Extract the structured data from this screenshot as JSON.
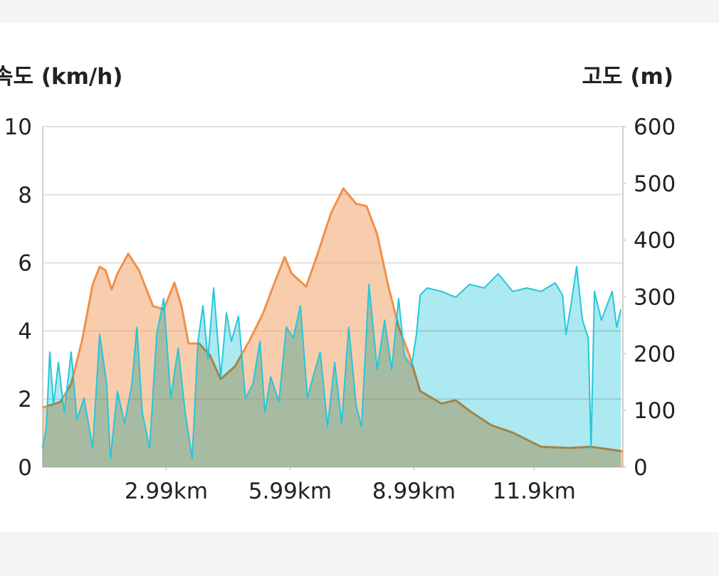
{
  "chart_data": {
    "type": "area",
    "y_label": "속도 (km/h)",
    "y2_label": "고도 (m)",
    "xlim": [
      0,
      14.05
    ],
    "xticks": [
      {
        "value": 2.99,
        "label": "2.99km"
      },
      {
        "value": 5.99,
        "label": "5.99km"
      },
      {
        "value": 8.99,
        "label": "8.99km"
      },
      {
        "value": 11.9,
        "label": "11.9km"
      }
    ],
    "ylim": [
      0,
      10
    ],
    "yticks": [
      0,
      2,
      4,
      6,
      8,
      10
    ],
    "y2lim": [
      0,
      600
    ],
    "y2ticks": [
      0,
      100,
      200,
      300,
      400,
      500,
      600
    ],
    "grid": true,
    "series": [
      {
        "name": "고도",
        "axis": "y2",
        "color": "#f0904a",
        "x": [
          0,
          0.43,
          0.69,
          0.95,
          1.21,
          1.38,
          1.52,
          1.67,
          1.81,
          2.07,
          2.33,
          2.67,
          2.93,
          3.19,
          3.36,
          3.53,
          3.79,
          4.05,
          4.31,
          4.66,
          5.0,
          5.34,
          5.6,
          5.86,
          6.03,
          6.38,
          6.64,
          6.98,
          7.28,
          7.59,
          7.84,
          8.1,
          8.36,
          8.62,
          8.88,
          9.14,
          9.66,
          10.0,
          10.34,
          10.86,
          11.38,
          12.07,
          12.76,
          13.28,
          14.05
        ],
        "values": [
          105,
          115,
          147,
          222,
          322,
          353,
          347,
          313,
          341,
          376,
          347,
          284,
          278,
          325,
          284,
          218,
          218,
          197,
          155,
          178,
          222,
          272,
          322,
          370,
          341,
          318,
          372,
          447,
          491,
          464,
          460,
          410,
          322,
          247,
          197,
          134,
          112,
          118,
          99,
          74,
          61,
          36,
          34,
          36,
          28
        ]
      },
      {
        "name": "속도",
        "axis": "y",
        "color": "#26c6da",
        "x": [
          0,
          0.09,
          0.17,
          0.26,
          0.38,
          0.52,
          0.69,
          0.83,
          1.0,
          1.21,
          1.38,
          1.55,
          1.64,
          1.81,
          1.98,
          2.16,
          2.28,
          2.41,
          2.59,
          2.76,
          2.93,
          3.1,
          3.28,
          3.45,
          3.62,
          3.76,
          3.88,
          4.0,
          4.14,
          4.31,
          4.45,
          4.57,
          4.74,
          4.91,
          5.09,
          5.26,
          5.38,
          5.52,
          5.72,
          5.9,
          6.07,
          6.24,
          6.41,
          6.55,
          6.72,
          6.9,
          7.07,
          7.24,
          7.41,
          7.59,
          7.72,
          7.9,
          8.1,
          8.28,
          8.45,
          8.62,
          8.76,
          8.93,
          9.05,
          9.14,
          9.31,
          9.66,
          10.0,
          10.34,
          10.69,
          11.03,
          11.38,
          11.72,
          12.07,
          12.41,
          12.59,
          12.67,
          12.79,
          12.93,
          13.07,
          13.21,
          13.28,
          13.36,
          13.53,
          13.79,
          13.9,
          14.0
        ],
        "values": [
          0.56,
          1.19,
          3.38,
          1.82,
          3.07,
          1.61,
          3.38,
          1.4,
          2.03,
          0.56,
          3.9,
          2.44,
          0.25,
          2.23,
          1.29,
          2.44,
          4.11,
          1.61,
          0.56,
          3.9,
          4.95,
          2.03,
          3.49,
          1.61,
          0.25,
          3.7,
          4.74,
          3.17,
          5.26,
          2.65,
          4.53,
          3.7,
          4.43,
          2.03,
          2.44,
          3.7,
          1.61,
          2.65,
          1.92,
          4.11,
          3.8,
          4.74,
          2.03,
          2.65,
          3.38,
          1.19,
          3.07,
          1.29,
          4.11,
          1.82,
          1.19,
          5.37,
          2.86,
          4.32,
          2.86,
          4.95,
          3.28,
          2.96,
          3.9,
          5.05,
          5.26,
          5.16,
          4.99,
          5.37,
          5.26,
          5.68,
          5.16,
          5.26,
          5.16,
          5.41,
          5.05,
          3.9,
          4.74,
          5.89,
          4.32,
          3.8,
          0.56,
          5.16,
          4.32,
          5.16,
          4.11,
          4.64
        ]
      }
    ]
  }
}
